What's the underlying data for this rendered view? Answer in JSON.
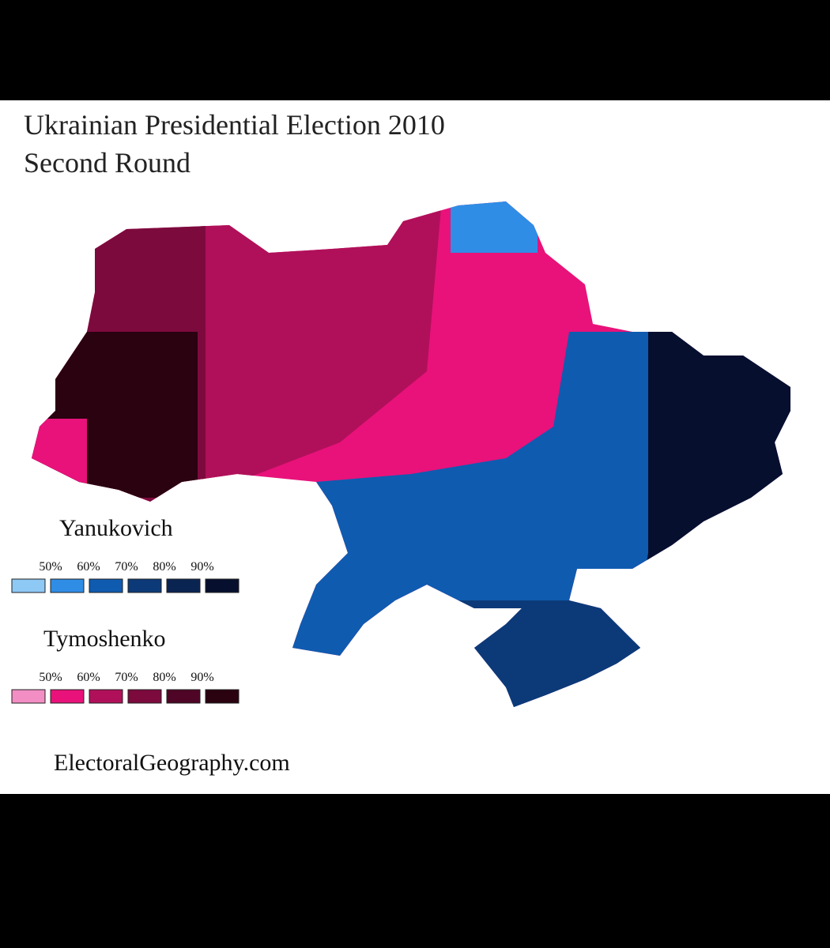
{
  "title": [
    "Ukrainian Presidential Election 2010",
    "Second Round"
  ],
  "legend": [
    {
      "name": "Yanukovich",
      "ticks": [
        "50%",
        "60%",
        "70%",
        "80%",
        "90%"
      ],
      "colors": [
        "#8ec8f5",
        "#2f8de6",
        "#0f5bb0",
        "#0c3a78",
        "#0a2452",
        "#060f2e"
      ]
    },
    {
      "name": "Tymoshenko",
      "ticks": [
        "50%",
        "60%",
        "70%",
        "80%",
        "90%"
      ],
      "colors": [
        "#f28ec4",
        "#e8127a",
        "#b0105a",
        "#7d0a3d",
        "#4f0525",
        "#2a0210"
      ]
    }
  ],
  "source": "ElectoralGeography.com"
}
